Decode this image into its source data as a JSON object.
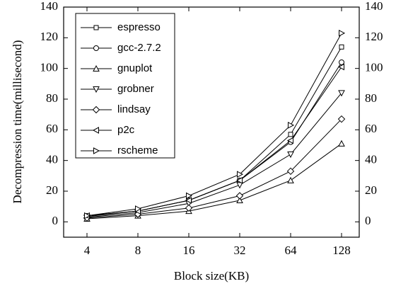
{
  "chart_data": {
    "type": "line",
    "x_label": "Block size(KB)",
    "y_label": "Decompression time(millisecond)",
    "categories": [
      "4",
      "8",
      "16",
      "32",
      "64",
      "128"
    ],
    "ylim": [
      -10,
      140
    ],
    "yticks": [
      0,
      20,
      40,
      60,
      80,
      100,
      120,
      140
    ],
    "series": [
      {
        "name": "espresso",
        "color": "#000000",
        "marker": "square",
        "values": [
          4,
          7,
          14,
          27,
          57,
          114
        ]
      },
      {
        "name": "gcc-2.7.2",
        "color": "#000000",
        "marker": "circle",
        "values": [
          3.5,
          7,
          14,
          27,
          52,
          104
        ]
      },
      {
        "name": "gnuplot",
        "color": "#000000",
        "marker": "triangle-up",
        "values": [
          2,
          4,
          7,
          14,
          27,
          51
        ]
      },
      {
        "name": "grobner",
        "color": "#000000",
        "marker": "triangle-down",
        "values": [
          3,
          6,
          12,
          24,
          44,
          84
        ]
      },
      {
        "name": "lindsay",
        "color": "#000000",
        "marker": "diamond",
        "values": [
          2.5,
          5,
          9,
          17,
          33,
          67
        ]
      },
      {
        "name": "p2c",
        "color": "#000000",
        "marker": "triangle-left",
        "values": [
          4,
          7,
          14,
          27,
          53,
          101
        ]
      },
      {
        "name": "rscheme",
        "color": "#000000",
        "marker": "triangle-right",
        "values": [
          4,
          8.5,
          17,
          31,
          63,
          123
        ]
      }
    ]
  }
}
